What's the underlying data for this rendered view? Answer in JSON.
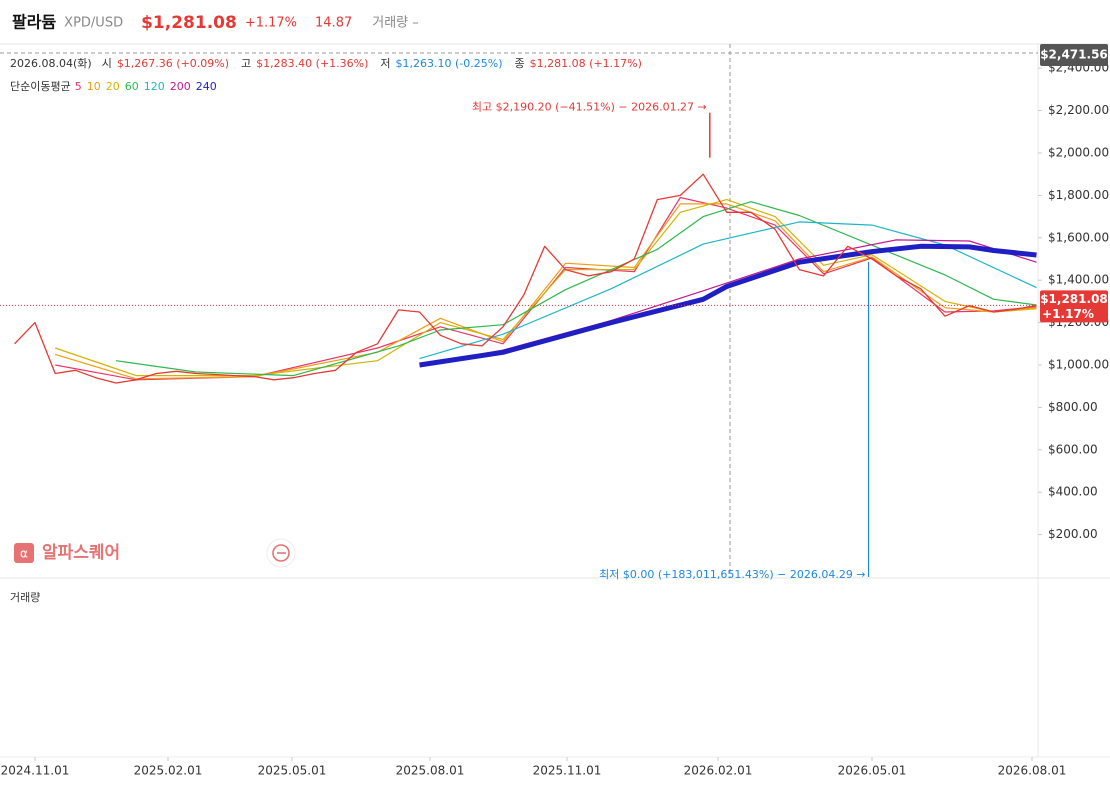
{
  "header": {
    "name": "팔라듐",
    "symbol": "XPD/USD",
    "price": "$1,281.08",
    "change": "+1.17%",
    "value": "14.87",
    "volume_label": "거래량 –"
  },
  "info": {
    "date": "2026.08.04(화)",
    "items": [
      {
        "label": "시",
        "value": "$1,267.36 (+0.09%)"
      },
      {
        "label": "고",
        "value": "$1,283.40 (+1.36%)"
      },
      {
        "label": "저",
        "value": "$1,263.10 (-0.25%)"
      },
      {
        "label": "종",
        "value": "$1,281.08 (+1.17%)"
      }
    ]
  },
  "chart_data": {
    "type": "line",
    "legend_title": "단순이동평균",
    "color": "#e53935",
    "xlim": [
      "2024.10.08",
      "2026.08.05"
    ],
    "xticks": [
      "2024.11.01",
      "2025.02.01",
      "2025.05.01",
      "2025.08.01",
      "2025.11.01",
      "2026.02.01",
      "2026.05.01",
      "2026.08.01"
    ],
    "ylim": [
      0,
      2471.56
    ],
    "yticks": [
      {
        "value": 200,
        "label": "$200.00"
      },
      {
        "value": 400,
        "label": "$400.00"
      },
      {
        "value": 600,
        "label": "$600.00"
      },
      {
        "value": 800,
        "label": "$800.00"
      },
      {
        "value": 1000,
        "label": "$1,000.00"
      },
      {
        "value": 1200,
        "label": "$1,200.00"
      },
      {
        "value": 1400,
        "label": "$1,400.00"
      },
      {
        "value": 1600,
        "label": "$1,600.00"
      },
      {
        "value": 1800,
        "label": "$1,800.00"
      },
      {
        "value": 2000,
        "label": "$2,000.00"
      },
      {
        "value": 2200,
        "label": "$2,200.00"
      },
      {
        "value": 2400,
        "label": "$2,400.00"
      }
    ],
    "x": [
      "2024.10.18",
      "2024.11.01",
      "2024.11.15",
      "2024.11.29",
      "2024.12.13",
      "2024.12.27",
      "2025.01.10",
      "2025.01.24",
      "2025.02.07",
      "2025.02.21",
      "2025.03.07",
      "2025.03.21",
      "2025.04.04",
      "2025.04.18",
      "2025.05.02",
      "2025.05.16",
      "2025.05.30",
      "2025.06.13",
      "2025.06.27",
      "2025.07.11",
      "2025.07.25",
      "2025.08.08",
      "2025.08.22",
      "2025.09.05",
      "2025.09.19",
      "2025.10.03",
      "2025.10.17",
      "2025.10.31",
      "2025.11.14",
      "2025.11.28",
      "2025.12.12",
      "2025.12.26",
      "2026.01.09",
      "2026.01.23",
      "2026.02.06",
      "2026.02.20",
      "2026.03.06",
      "2026.03.20",
      "2026.04.03",
      "2026.04.17",
      "2026.05.01",
      "2026.05.15",
      "2026.05.29",
      "2026.06.12",
      "2026.06.26",
      "2026.07.10",
      "2026.07.24",
      "2026.08.04"
    ],
    "values": [
      1100,
      1200,
      960,
      975,
      940,
      915,
      930,
      960,
      970,
      960,
      955,
      950,
      945,
      930,
      940,
      960,
      975,
      1060,
      1100,
      1260,
      1250,
      1140,
      1100,
      1090,
      1180,
      1330,
      1560,
      1450,
      1420,
      1440,
      1500,
      1780,
      1800,
      1900,
      1720,
      1720,
      1640,
      1450,
      1420,
      1560,
      1500,
      1420,
      1360,
      1230,
      1280,
      1250,
      1265,
      1281.08
    ],
    "series": [
      {
        "name": "5",
        "color": "#e8366b",
        "x": [
          "2024.11.15",
          "2025.01.10",
          "2025.04.04",
          "2025.06.27",
          "2025.08.08",
          "2025.09.19",
          "2025.10.31",
          "2025.12.12",
          "2026.01.09",
          "2026.02.06",
          "2026.03.06",
          "2026.04.03",
          "2026.05.01",
          "2026.06.12",
          "2026.07.10",
          "2026.08.04"
        ],
        "values": [
          1000,
          930,
          945,
          1080,
          1180,
          1100,
          1460,
          1440,
          1790,
          1740,
          1660,
          1430,
          1505,
          1250,
          1255,
          1275
        ]
      },
      {
        "name": "10",
        "color": "#f39c12",
        "x": [
          "2024.11.15",
          "2025.01.10",
          "2025.04.04",
          "2025.06.27",
          "2025.08.08",
          "2025.09.19",
          "2025.10.31",
          "2025.12.12",
          "2026.01.09",
          "2026.02.06",
          "2026.03.06",
          "2026.04.03",
          "2026.05.01",
          "2026.06.12",
          "2026.07.10",
          "2026.08.04"
        ],
        "values": [
          1050,
          935,
          945,
          1060,
          1220,
          1110,
          1480,
          1460,
          1760,
          1760,
          1680,
          1440,
          1510,
          1270,
          1250,
          1270
        ]
      },
      {
        "name": "20",
        "color": "#d4b106",
        "x": [
          "2024.11.15",
          "2025.01.10",
          "2025.04.04",
          "2025.06.27",
          "2025.08.08",
          "2025.09.19",
          "2025.10.31",
          "2025.12.12",
          "2026.01.09",
          "2026.02.06",
          "2026.03.06",
          "2026.04.03",
          "2026.05.01",
          "2026.06.12",
          "2026.07.10",
          "2026.08.04"
        ],
        "values": [
          1080,
          950,
          950,
          1020,
          1200,
          1120,
          1450,
          1450,
          1720,
          1780,
          1700,
          1470,
          1520,
          1300,
          1250,
          1265
        ]
      },
      {
        "name": "60",
        "color": "#2db84d",
        "x": [
          "2024.12.27",
          "2025.02.21",
          "2025.05.02",
          "2025.07.11",
          "2025.08.08",
          "2025.09.19",
          "2025.10.31",
          "2025.12.26",
          "2026.01.23",
          "2026.02.20",
          "2026.03.20",
          "2026.05.01",
          "2026.06.12",
          "2026.07.10",
          "2026.08.04"
        ],
        "values": [
          1020,
          967,
          950,
          1090,
          1165,
          1190,
          1355,
          1545,
          1700,
          1770,
          1705,
          1565,
          1425,
          1310,
          1283
        ]
      },
      {
        "name": "120",
        "color": "#1fb5c9",
        "x": [
          "2025.07.25",
          "2025.09.19",
          "2025.11.28",
          "2026.01.23",
          "2026.03.20",
          "2026.05.01",
          "2026.06.12",
          "2026.08.04"
        ],
        "values": [
          1030,
          1145,
          1360,
          1570,
          1675,
          1660,
          1566,
          1365
        ]
      },
      {
        "name": "200",
        "color": "#c2188f",
        "x": [
          "2025.07.25",
          "2025.09.19",
          "2025.11.28",
          "2026.01.23",
          "2026.03.20",
          "2026.05.15",
          "2026.06.26",
          "2026.08.04"
        ],
        "values": [
          1000,
          1070,
          1210,
          1350,
          1500,
          1590,
          1585,
          1485
        ]
      },
      {
        "name": "240",
        "color": "#1f1fc4",
        "x": [
          "2025.07.25",
          "2025.09.19",
          "2025.11.28",
          "2026.01.23",
          "2026.02.06",
          "2026.03.20",
          "2026.05.01",
          "2026.05.29",
          "2026.06.26",
          "2026.07.10",
          "2026.08.04"
        ],
        "values": [
          1000,
          1060,
          1200,
          1310,
          1370,
          1485,
          1535,
          1560,
          1557,
          1540,
          1519
        ]
      }
    ],
    "annotations": [
      {
        "text": "최고 $2,190.20 (−41.51%) − 2026.01.27 →",
        "x": "2026.01.27",
        "value": 2190.2,
        "color": "#e53935"
      },
      {
        "text": "최저 $0.00 (+183,011,651.43%) − 2026.04.29 →",
        "x": "2026.04.29",
        "value": 0,
        "color": "#1e88e5"
      }
    ],
    "crosshair": {
      "value": 2471.56,
      "label": "$2,471.56"
    },
    "last_price": {
      "value": 1281.08,
      "label": "$1,281.08",
      "change": "+1.17%"
    }
  },
  "watermark": "알파스퀘어",
  "volume_pane": {
    "title": "거래량"
  }
}
